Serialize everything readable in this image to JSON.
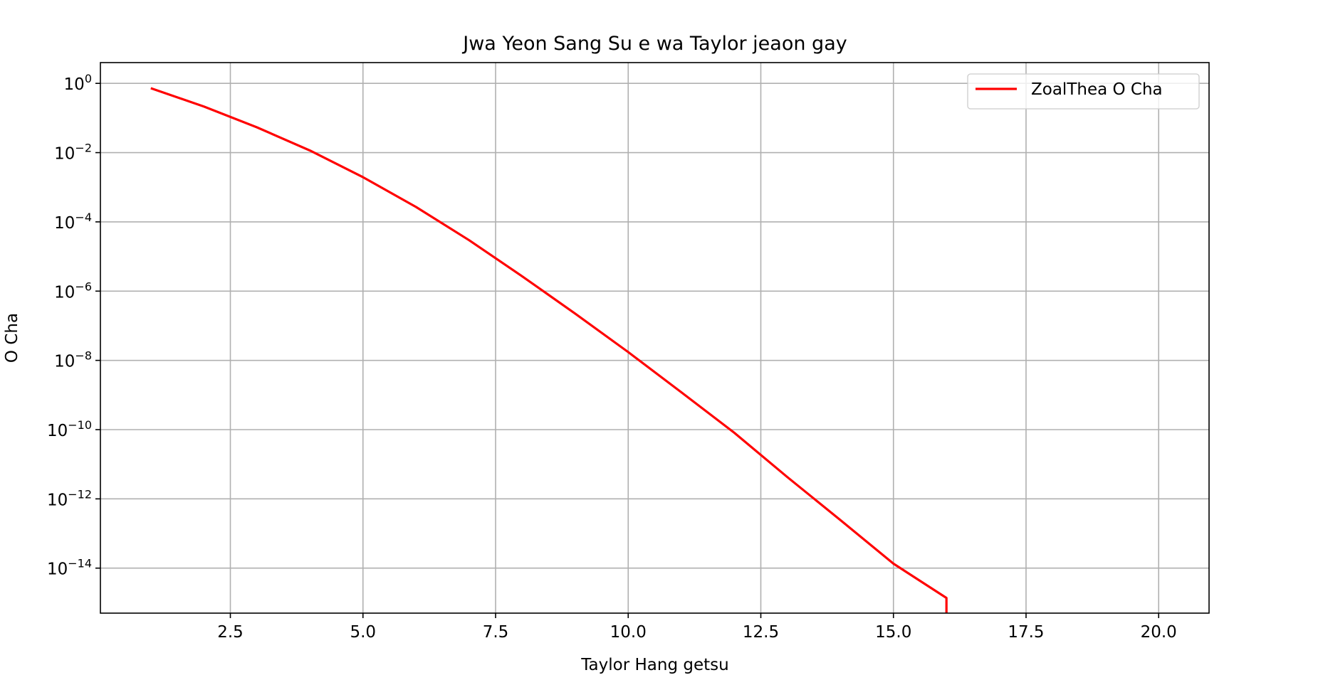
{
  "chart_data": {
    "type": "line",
    "title": "Jwa Yeon Sang Su e wa Taylor jeaon gay",
    "xlabel": "Taylor Hang getsu",
    "ylabel": "O Cha",
    "xlim": [
      0.05,
      20.95
    ],
    "ylim_exponent": [
      -15.3,
      0.6
    ],
    "yscale": "log",
    "grid": true,
    "legend_position": "upper-right",
    "x_ticks": [
      {
        "value": 2.5,
        "label": "2.5"
      },
      {
        "value": 5.0,
        "label": "5.0"
      },
      {
        "value": 7.5,
        "label": "7.5"
      },
      {
        "value": 10.0,
        "label": "10.0"
      },
      {
        "value": 12.5,
        "label": "12.5"
      },
      {
        "value": 15.0,
        "label": "15.0"
      },
      {
        "value": 17.5,
        "label": "17.5"
      },
      {
        "value": 20.0,
        "label": "20.0"
      }
    ],
    "y_ticks": [
      {
        "exponent": 0,
        "base": "10",
        "sup": "0"
      },
      {
        "exponent": -2,
        "base": "10",
        "sup": "−2"
      },
      {
        "exponent": -4,
        "base": "10",
        "sup": "−4"
      },
      {
        "exponent": -6,
        "base": "10",
        "sup": "−6"
      },
      {
        "exponent": -8,
        "base": "10",
        "sup": "−8"
      },
      {
        "exponent": -10,
        "base": "10",
        "sup": "−10"
      },
      {
        "exponent": -12,
        "base": "10",
        "sup": "−12"
      },
      {
        "exponent": -14,
        "base": "10",
        "sup": "−14"
      }
    ],
    "series": [
      {
        "name": "ZoalThea O Cha",
        "color": "#ff0000",
        "x": [
          1,
          2,
          3,
          4,
          5,
          6,
          7,
          8,
          9,
          10,
          11,
          12,
          13,
          14,
          15,
          16,
          16
        ],
        "y_exponent": [
          -0.14,
          -0.67,
          -1.27,
          -1.94,
          -2.71,
          -3.57,
          -4.53,
          -5.57,
          -6.65,
          -7.76,
          -8.92,
          -10.09,
          -11.37,
          -12.61,
          -13.87,
          -14.86,
          -15.3
        ]
      }
    ]
  }
}
